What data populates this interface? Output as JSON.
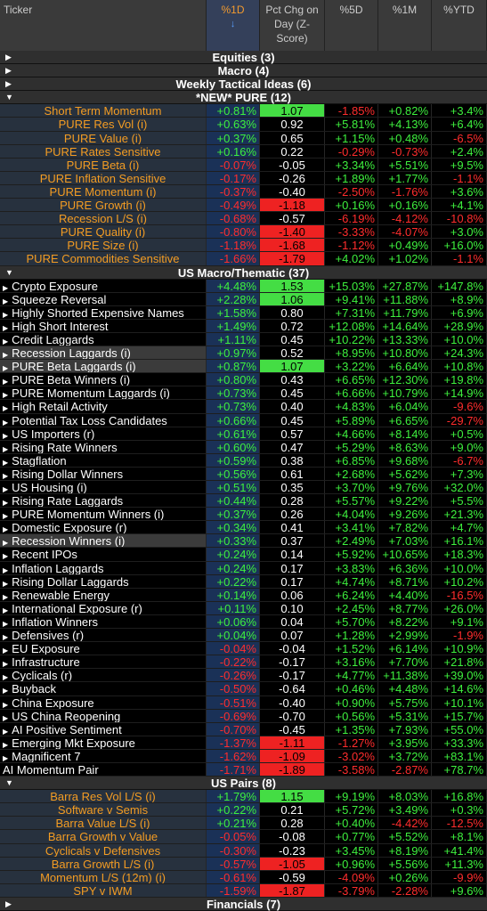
{
  "header": {
    "columns": [
      "Ticker",
      "%1D",
      "Pct Chg on Day (Z-Score)",
      "%5D",
      "%1M",
      "%YTD"
    ]
  },
  "groups": [
    {
      "title": "Equities (3)",
      "expanded": false,
      "style": "centered",
      "rows": []
    },
    {
      "title": "Macro (4)",
      "expanded": false,
      "style": "centered",
      "rows": []
    },
    {
      "title": "Weekly Tactical Ideas (6)",
      "expanded": false,
      "style": "centered",
      "rows": []
    },
    {
      "title": "*NEW* PURE (12)",
      "expanded": true,
      "style": "centered",
      "rows": [
        {
          "name": "Short Term Momentum",
          "values": [
            "+0.81%",
            "1.07",
            "-1.85%",
            "+0.82%",
            "+3.4%"
          ]
        },
        {
          "name": "PURE Res Vol (i)",
          "values": [
            "+0.63%",
            "0.92",
            "+5.81%",
            "+4.13%",
            "+6.4%"
          ]
        },
        {
          "name": "PURE Value (i)",
          "values": [
            "+0.37%",
            "0.65",
            "+1.15%",
            "+0.48%",
            "-6.5%"
          ]
        },
        {
          "name": "PURE Rates Sensitive",
          "values": [
            "+0.16%",
            "0.22",
            "-0.29%",
            "-0.73%",
            "+2.4%"
          ]
        },
        {
          "name": "PURE Beta (i)",
          "values": [
            "-0.07%",
            "-0.05",
            "+3.34%",
            "+5.51%",
            "+9.5%"
          ]
        },
        {
          "name": "PURE Inflation Sensitive",
          "values": [
            "-0.17%",
            "-0.26",
            "+1.89%",
            "+1.77%",
            "-1.1%"
          ]
        },
        {
          "name": "PURE Momentum (i)",
          "values": [
            "-0.37%",
            "-0.40",
            "-2.50%",
            "-1.76%",
            "+3.6%"
          ]
        },
        {
          "name": "PURE Growth (i)",
          "values": [
            "-0.49%",
            "-1.18",
            "+0.16%",
            "+0.16%",
            "+4.1%"
          ]
        },
        {
          "name": "Recession L/S (i)",
          "values": [
            "-0.68%",
            "-0.57",
            "-6.19%",
            "-4.12%",
            "-10.8%"
          ]
        },
        {
          "name": "PURE Quality (i)",
          "values": [
            "-0.80%",
            "-1.40",
            "-3.33%",
            "-4.07%",
            "+3.0%"
          ]
        },
        {
          "name": "PURE Size (i)",
          "values": [
            "-1.18%",
            "-1.68",
            "-1.12%",
            "+0.49%",
            "+16.0%"
          ]
        },
        {
          "name": "PURE Commodities Sensitive",
          "values": [
            "-1.66%",
            "-1.79",
            "+4.02%",
            "+1.02%",
            "-1.1%"
          ]
        }
      ]
    },
    {
      "title": "US Macro/Thematic (37)",
      "expanded": true,
      "style": "list",
      "rows": [
        {
          "name": "Crypto Exposure",
          "values": [
            "+4.48%",
            "1.53",
            "+15.03%",
            "+27.87%",
            "+147.8%"
          ]
        },
        {
          "name": "Squeeze Reversal",
          "values": [
            "+2.28%",
            "1.06",
            "+9.41%",
            "+11.88%",
            "+8.9%"
          ]
        },
        {
          "name": "Highly Shorted Expensive Names",
          "values": [
            "+1.58%",
            "0.80",
            "+7.31%",
            "+11.79%",
            "+6.9%"
          ]
        },
        {
          "name": "High Short Interest",
          "values": [
            "+1.49%",
            "0.72",
            "+12.08%",
            "+14.64%",
            "+28.9%"
          ]
        },
        {
          "name": "Credit Laggards",
          "values": [
            "+1.11%",
            "0.45",
            "+10.22%",
            "+13.33%",
            "+10.0%"
          ]
        },
        {
          "name": "Recession Laggards (i)",
          "highlight": true,
          "values": [
            "+0.97%",
            "0.52",
            "+8.95%",
            "+10.80%",
            "+24.3%"
          ]
        },
        {
          "name": "PURE Beta Laggards (i)",
          "highlight": true,
          "values": [
            "+0.87%",
            "1.07",
            "+3.22%",
            "+6.64%",
            "+10.8%"
          ]
        },
        {
          "name": "PURE Beta Winners (i)",
          "values": [
            "+0.80%",
            "0.43",
            "+6.65%",
            "+12.30%",
            "+19.8%"
          ]
        },
        {
          "name": "PURE Momentum Laggards (i)",
          "values": [
            "+0.73%",
            "0.45",
            "+6.66%",
            "+10.79%",
            "+14.9%"
          ]
        },
        {
          "name": "High Retail Activity",
          "values": [
            "+0.73%",
            "0.40",
            "+4.83%",
            "+6.04%",
            "-9.6%"
          ]
        },
        {
          "name": "Potential Tax Loss Candidates",
          "values": [
            "+0.66%",
            "0.45",
            "+5.89%",
            "+6.65%",
            "-29.7%"
          ]
        },
        {
          "name": "US Importers (r)",
          "values": [
            "+0.61%",
            "0.57",
            "+4.66%",
            "+8.14%",
            "+0.5%"
          ]
        },
        {
          "name": "Rising Rate Winners",
          "values": [
            "+0.60%",
            "0.47",
            "+5.29%",
            "+8.63%",
            "+9.0%"
          ]
        },
        {
          "name": "Stagflation",
          "values": [
            "+0.59%",
            "0.38",
            "+6.85%",
            "+9.68%",
            "-6.7%"
          ]
        },
        {
          "name": "Rising Dollar Winners",
          "values": [
            "+0.56%",
            "0.61",
            "+2.68%",
            "+5.62%",
            "+7.3%"
          ]
        },
        {
          "name": "US Housing (i)",
          "values": [
            "+0.51%",
            "0.35",
            "+3.70%",
            "+9.76%",
            "+32.0%"
          ]
        },
        {
          "name": "Rising Rate Laggards",
          "values": [
            "+0.44%",
            "0.28",
            "+5.57%",
            "+9.22%",
            "+5.5%"
          ]
        },
        {
          "name": "PURE Momentum Winners (i)",
          "values": [
            "+0.37%",
            "0.26",
            "+4.04%",
            "+9.26%",
            "+21.3%"
          ]
        },
        {
          "name": "Domestic Exposure (r)",
          "values": [
            "+0.34%",
            "0.41",
            "+3.41%",
            "+7.82%",
            "+4.7%"
          ]
        },
        {
          "name": "Recession Winners (i)",
          "highlight": true,
          "values": [
            "+0.33%",
            "0.37",
            "+2.49%",
            "+7.03%",
            "+16.1%"
          ]
        },
        {
          "name": "Recent IPOs",
          "values": [
            "+0.24%",
            "0.14",
            "+5.92%",
            "+10.65%",
            "+18.3%"
          ]
        },
        {
          "name": "Inflation Laggards",
          "values": [
            "+0.24%",
            "0.17",
            "+3.83%",
            "+6.36%",
            "+10.0%"
          ]
        },
        {
          "name": "Rising Dollar Laggards",
          "values": [
            "+0.22%",
            "0.17",
            "+4.74%",
            "+8.71%",
            "+10.2%"
          ]
        },
        {
          "name": "Renewable Energy",
          "values": [
            "+0.14%",
            "0.06",
            "+6.24%",
            "+4.40%",
            "-16.5%"
          ]
        },
        {
          "name": "International Exposure (r)",
          "values": [
            "+0.11%",
            "0.10",
            "+2.45%",
            "+8.77%",
            "+26.0%"
          ]
        },
        {
          "name": "Inflation Winners",
          "values": [
            "+0.06%",
            "0.04",
            "+5.70%",
            "+8.22%",
            "+9.1%"
          ]
        },
        {
          "name": "Defensives (r)",
          "values": [
            "+0.04%",
            "0.07",
            "+1.28%",
            "+2.99%",
            "-1.9%"
          ]
        },
        {
          "name": "EU Exposure",
          "values": [
            "-0.04%",
            "-0.04",
            "+1.52%",
            "+6.14%",
            "+10.9%"
          ]
        },
        {
          "name": "Infrastructure",
          "values": [
            "-0.22%",
            "-0.17",
            "+3.16%",
            "+7.70%",
            "+21.8%"
          ]
        },
        {
          "name": "Cyclicals (r)",
          "values": [
            "-0.26%",
            "-0.17",
            "+4.77%",
            "+11.38%",
            "+39.0%"
          ]
        },
        {
          "name": "Buyback",
          "values": [
            "-0.50%",
            "-0.64",
            "+0.46%",
            "+4.48%",
            "+14.6%"
          ]
        },
        {
          "name": "China Exposure",
          "values": [
            "-0.51%",
            "-0.40",
            "+0.90%",
            "+5.75%",
            "+10.1%"
          ]
        },
        {
          "name": "US China Reopening",
          "values": [
            "-0.69%",
            "-0.70",
            "+0.56%",
            "+5.31%",
            "+15.7%"
          ]
        },
        {
          "name": "AI Positive Sentiment",
          "values": [
            "-0.70%",
            "-0.45",
            "+1.35%",
            "+7.93%",
            "+55.0%"
          ]
        },
        {
          "name": "Emerging Mkt Exposure",
          "values": [
            "-1.37%",
            "-1.11",
            "-1.27%",
            "+3.95%",
            "+33.3%"
          ]
        },
        {
          "name": "Magnificent 7",
          "values": [
            "-1.62%",
            "-1.09",
            "-3.02%",
            "+3.72%",
            "+83.1%"
          ]
        },
        {
          "name": "AI Momentum Pair",
          "values": [
            "-1.71%",
            "-1.89",
            "-3.58%",
            "-2.87%",
            "+78.7%"
          ]
        }
      ]
    },
    {
      "title": "US Pairs (8)",
      "expanded": true,
      "style": "centered",
      "rows": [
        {
          "name": "Barra Res Vol L/S (i)",
          "values": [
            "+1.79%",
            "1.15",
            "+9.19%",
            "+8.03%",
            "+16.8%"
          ]
        },
        {
          "name": "Software v Semis",
          "values": [
            "+0.22%",
            "0.21",
            "+5.72%",
            "+3.49%",
            "+0.3%"
          ]
        },
        {
          "name": "Barra Value L/S (i)",
          "values": [
            "+0.21%",
            "0.28",
            "+0.40%",
            "-4.42%",
            "-12.5%"
          ]
        },
        {
          "name": "Barra Growth v Value",
          "values": [
            "-0.05%",
            "-0.08",
            "+0.77%",
            "+5.52%",
            "+8.1%"
          ]
        },
        {
          "name": "Cyclicals v Defensives",
          "values": [
            "-0.30%",
            "-0.23",
            "+3.45%",
            "+8.19%",
            "+41.4%"
          ]
        },
        {
          "name": "Barra Growth L/S (i)",
          "values": [
            "-0.57%",
            "-1.05",
            "+0.96%",
            "+5.56%",
            "+11.3%"
          ]
        },
        {
          "name": "Momentum L/S (12m) (i)",
          "values": [
            "-0.61%",
            "-0.59",
            "-4.09%",
            "+0.26%",
            "-9.9%"
          ]
        },
        {
          "name": "SPY v IWM",
          "values": [
            "-1.59%",
            "-1.87",
            "-3.79%",
            "-2.28%",
            "+9.6%"
          ]
        }
      ]
    },
    {
      "title": "Financials (7)",
      "expanded": false,
      "style": "centered",
      "rows": []
    }
  ]
}
